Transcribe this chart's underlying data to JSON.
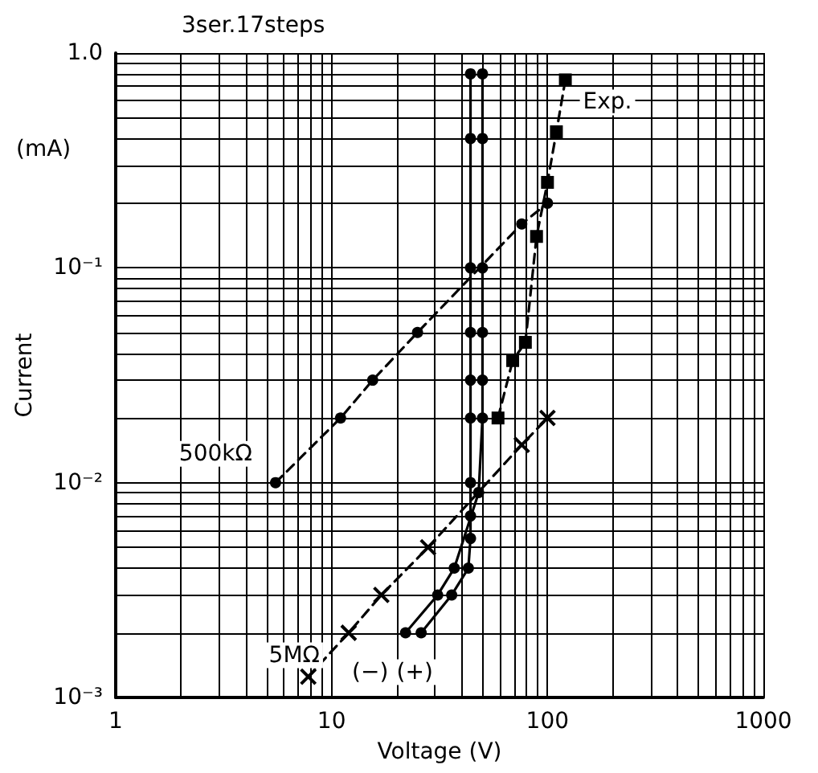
{
  "chart_data": {
    "type": "line",
    "title": "3ser.17steps",
    "xlabel": "Voltage (V)",
    "ylabel": "Current",
    "annotations": [
      "(mA)"
    ],
    "log": "xy",
    "grid": true,
    "legend": false,
    "xlim": [
      1,
      1000
    ],
    "xticks": [
      1,
      {
        "value": 2,
        "label": null
      },
      {
        "value": 3,
        "label": null
      },
      {
        "value": 4,
        "label": null
      },
      {
        "value": 5,
        "label": null
      },
      {
        "value": 6,
        "label": null
      },
      {
        "value": 7,
        "label": null
      },
      {
        "value": 8,
        "label": null
      },
      {
        "value": 9,
        "label": null
      },
      10,
      {
        "value": 20,
        "label": null
      },
      {
        "value": 30,
        "label": null
      },
      {
        "value": 40,
        "label": null
      },
      {
        "value": 50,
        "label": null
      },
      {
        "value": 60,
        "label": null
      },
      {
        "value": 70,
        "label": null
      },
      {
        "value": 80,
        "label": null
      },
      {
        "value": 90,
        "label": null
      },
      100,
      {
        "value": 200,
        "label": null
      },
      {
        "value": 300,
        "label": null
      },
      {
        "value": 400,
        "label": null
      },
      {
        "value": 500,
        "label": null
      },
      {
        "value": 600,
        "label": null
      },
      {
        "value": 700,
        "label": null
      },
      {
        "value": 800,
        "label": null
      },
      {
        "value": 900,
        "label": null
      },
      1000
    ],
    "ylim": [
      0.001,
      1
    ],
    "yticks": [
      {
        "value": 0.001,
        "label": "10⁻³"
      },
      {
        "value": 0.002,
        "label": null
      },
      {
        "value": 0.003,
        "label": null
      },
      {
        "value": 0.004,
        "label": null
      },
      {
        "value": 0.005,
        "label": null
      },
      {
        "value": 0.006,
        "label": null
      },
      {
        "value": 0.007,
        "label": null
      },
      {
        "value": 0.008,
        "label": null
      },
      {
        "value": 0.009,
        "label": null
      },
      {
        "value": 0.01,
        "label": "10⁻²"
      },
      {
        "value": 0.02,
        "label": null
      },
      {
        "value": 0.03,
        "label": null
      },
      {
        "value": 0.04,
        "label": null
      },
      {
        "value": 0.05,
        "label": null
      },
      {
        "value": 0.06,
        "label": null
      },
      {
        "value": 0.07,
        "label": null
      },
      {
        "value": 0.08,
        "label": null
      },
      {
        "value": 0.09,
        "label": null
      },
      {
        "value": 0.1,
        "label": "10⁻¹"
      },
      {
        "value": 0.2,
        "label": null
      },
      {
        "value": 0.3,
        "label": null
      },
      {
        "value": 0.4,
        "label": null
      },
      {
        "value": 0.5,
        "label": null
      },
      {
        "value": 0.6,
        "label": null
      },
      {
        "value": 0.7,
        "label": null
      },
      {
        "value": 0.8,
        "label": null
      },
      {
        "value": 0.9,
        "label": null
      },
      {
        "value": 1,
        "label": "1.0"
      }
    ],
    "series": [
      {
        "name": "500kΩ",
        "color": "#000000",
        "marker": "circle",
        "line_style": "dashed",
        "x": [
          5.5,
          11,
          15.5,
          25,
          76,
          100
        ],
        "values": [
          0.01,
          0.02,
          0.03,
          0.05,
          0.16,
          0.2
        ]
      },
      {
        "name": "5MΩ",
        "color": "#000000",
        "marker": "cross",
        "line_style": "dashed",
        "x": [
          7.8,
          12,
          17,
          28,
          76,
          100
        ],
        "values": [
          0.00125,
          0.002,
          0.003,
          0.005,
          0.015,
          0.02
        ]
      },
      {
        "name": "Exp.",
        "color": "#000000",
        "marker": "square",
        "line_style": "dashed",
        "x": [
          121,
          110,
          100,
          89,
          79,
          69,
          59
        ],
        "values": [
          0.75,
          0.43,
          0.25,
          0.14,
          0.045,
          0.037,
          0.02
        ]
      },
      {
        "name": "(−)",
        "color": "#000000",
        "marker": "circle",
        "line_style": "solid",
        "x": [
          22,
          31,
          37,
          48,
          50,
          50,
          50,
          50,
          50,
          50
        ],
        "values": [
          0.002,
          0.003,
          0.004,
          0.009,
          0.02,
          0.03,
          0.05,
          0.1,
          0.4,
          0.8
        ]
      },
      {
        "name": "(+)",
        "color": "#000000",
        "marker": "circle",
        "line_style": "solid",
        "x": [
          26,
          36,
          43,
          44,
          44,
          44,
          44,
          44,
          44,
          44,
          44,
          44
        ],
        "values": [
          0.002,
          0.003,
          0.004,
          0.0055,
          0.007,
          0.01,
          0.02,
          0.03,
          0.05,
          0.1,
          0.4,
          0.8
        ]
      }
    ]
  }
}
